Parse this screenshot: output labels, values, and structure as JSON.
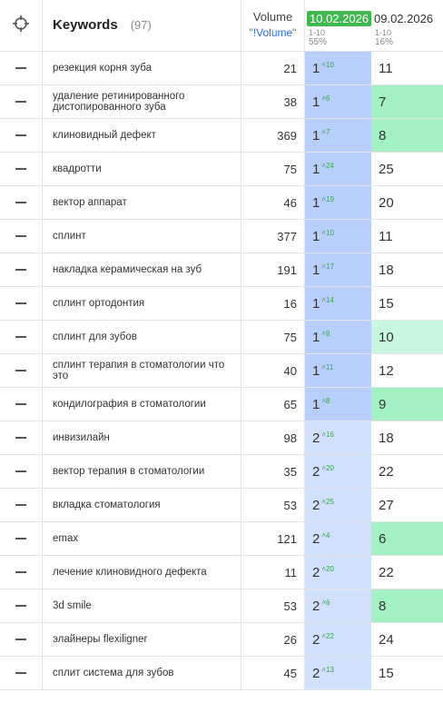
{
  "header": {
    "keywords_label": "Keywords",
    "keywords_count": "(97)",
    "volume_label": "Volume",
    "volume_link": "\"!Volume\"",
    "date1": "10.02.2026",
    "date1_range": "1-10",
    "date1_pct": "55%",
    "date2": "09.02.2026",
    "date2_range": "1-10",
    "date2_pct": "16%"
  },
  "rows": [
    {
      "keyword": "резекция корня зуба",
      "volume": "21",
      "pos": "1",
      "delta": "10",
      "prev": "11",
      "prev_highlight": "none"
    },
    {
      "keyword": "удаление ретинированного дистопированного зуба",
      "volume": "38",
      "pos": "1",
      "delta": "6",
      "prev": "7",
      "prev_highlight": "strong"
    },
    {
      "keyword": "клиновидный дефект",
      "volume": "369",
      "pos": "1",
      "delta": "7",
      "prev": "8",
      "prev_highlight": "strong"
    },
    {
      "keyword": "квадротти",
      "volume": "75",
      "pos": "1",
      "delta": "24",
      "prev": "25",
      "prev_highlight": "none"
    },
    {
      "keyword": "вектор аппарат",
      "volume": "46",
      "pos": "1",
      "delta": "19",
      "prev": "20",
      "prev_highlight": "none"
    },
    {
      "keyword": "сплинт",
      "volume": "377",
      "pos": "1",
      "delta": "10",
      "prev": "11",
      "prev_highlight": "none"
    },
    {
      "keyword": "накладка керамическая на зуб",
      "volume": "191",
      "pos": "1",
      "delta": "17",
      "prev": "18",
      "prev_highlight": "none"
    },
    {
      "keyword": "сплинт ортодонтия",
      "volume": "16",
      "pos": "1",
      "delta": "14",
      "prev": "15",
      "prev_highlight": "none"
    },
    {
      "keyword": "сплинт для зубов",
      "volume": "75",
      "pos": "1",
      "delta": "9",
      "prev": "10",
      "prev_highlight": "light"
    },
    {
      "keyword": "сплинт терапия в стоматологии что это",
      "volume": "40",
      "pos": "1",
      "delta": "11",
      "prev": "12",
      "prev_highlight": "none"
    },
    {
      "keyword": "кондилография в стоматологии",
      "volume": "65",
      "pos": "1",
      "delta": "8",
      "prev": "9",
      "prev_highlight": "strong"
    },
    {
      "keyword": "инвизилайн",
      "volume": "98",
      "pos": "2",
      "delta": "16",
      "prev": "18",
      "prev_highlight": "none"
    },
    {
      "keyword": "вектор терапия в стоматологии",
      "volume": "35",
      "pos": "2",
      "delta": "20",
      "prev": "22",
      "prev_highlight": "none"
    },
    {
      "keyword": "вкладка стоматология",
      "volume": "53",
      "pos": "2",
      "delta": "25",
      "prev": "27",
      "prev_highlight": "none"
    },
    {
      "keyword": "emax",
      "volume": "121",
      "pos": "2",
      "delta": "4",
      "prev": "6",
      "prev_highlight": "strong"
    },
    {
      "keyword": "лечение клиновидного дефекта",
      "volume": "11",
      "pos": "2",
      "delta": "20",
      "prev": "22",
      "prev_highlight": "none"
    },
    {
      "keyword": "3d smile",
      "volume": "53",
      "pos": "2",
      "delta": "6",
      "prev": "8",
      "prev_highlight": "strong"
    },
    {
      "keyword": "элайнеры flexiligner",
      "volume": "26",
      "pos": "2",
      "delta": "22",
      "prev": "24",
      "prev_highlight": "none"
    },
    {
      "keyword": "сплит система для зубов",
      "volume": "45",
      "pos": "2",
      "delta": "13",
      "prev": "15",
      "prev_highlight": "none"
    }
  ]
}
